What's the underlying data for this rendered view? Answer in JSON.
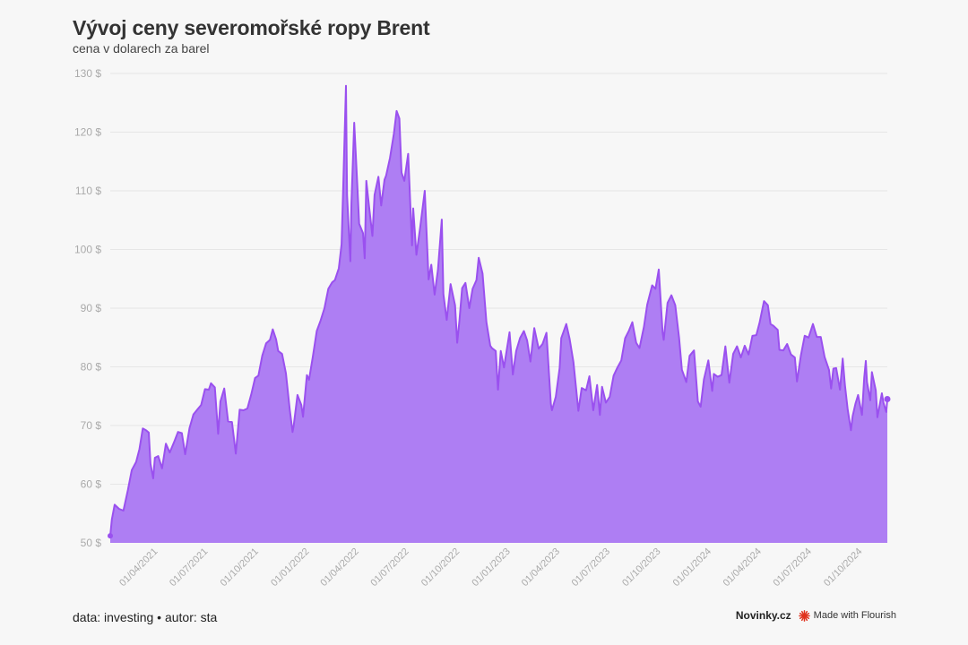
{
  "header": {
    "title": "Vývoj ceny severomořské ropy Brent",
    "subtitle": "cena v dolarech za barel"
  },
  "footer": {
    "source": "data: investing • autor: sta",
    "brand": "Novinky.cz",
    "made_with": "Made with Flourish"
  },
  "colors": {
    "fill": "#ae7ef3",
    "line": "#9a50ef",
    "grid": "#e6e6e6",
    "tick_label": "#aaaaaa",
    "flourish_icon": "#e0321c"
  },
  "chart_data": {
    "type": "area",
    "title": "Vývoj ceny severomořské ropy Brent",
    "subtitle": "cena v dolarech za barel",
    "xlabel": "",
    "ylabel": "",
    "ylim": [
      50,
      130
    ],
    "y_ticks": [
      50,
      60,
      70,
      80,
      90,
      100,
      110,
      120,
      130
    ],
    "y_tick_suffix": " $",
    "x_range": [
      "2021-01-04",
      "2024-11-15"
    ],
    "x_tick_labels": [
      {
        "date": "2021-04-01",
        "label": "01/04/2021"
      },
      {
        "date": "2021-07-01",
        "label": "01/07/2021"
      },
      {
        "date": "2021-10-01",
        "label": "01/10/2021"
      },
      {
        "date": "2022-01-01",
        "label": "01/01/2022"
      },
      {
        "date": "2022-04-01",
        "label": "01/04/2022"
      },
      {
        "date": "2022-07-01",
        "label": "01/07/2022"
      },
      {
        "date": "2022-10-01",
        "label": "01/10/2022"
      },
      {
        "date": "2023-01-01",
        "label": "01/01/2023"
      },
      {
        "date": "2023-04-01",
        "label": "01/04/2023"
      },
      {
        "date": "2023-07-01",
        "label": "01/07/2023"
      },
      {
        "date": "2023-10-01",
        "label": "01/10/2023"
      },
      {
        "date": "2024-01-01",
        "label": "01/01/2024"
      },
      {
        "date": "2024-04-01",
        "label": "01/04/2024"
      },
      {
        "date": "2024-07-01",
        "label": "01/07/2024"
      },
      {
        "date": "2024-10-01",
        "label": "01/10/2024"
      }
    ],
    "grid": true,
    "legend": "none",
    "series": [
      {
        "points": [
          [
            "2021-01-04",
            51.2
          ],
          [
            "2021-01-07",
            54.0
          ],
          [
            "2021-01-12",
            56.5
          ],
          [
            "2021-01-20",
            55.8
          ],
          [
            "2021-01-28",
            55.5
          ],
          [
            "2021-02-05",
            59.0
          ],
          [
            "2021-02-12",
            62.4
          ],
          [
            "2021-02-20",
            63.8
          ],
          [
            "2021-02-26",
            66.0
          ],
          [
            "2021-03-04",
            69.5
          ],
          [
            "2021-03-10",
            69.2
          ],
          [
            "2021-03-15",
            68.8
          ],
          [
            "2021-03-18",
            63.5
          ],
          [
            "2021-03-23",
            61.0
          ],
          [
            "2021-03-26",
            64.5
          ],
          [
            "2021-04-01",
            64.8
          ],
          [
            "2021-04-08",
            62.7
          ],
          [
            "2021-04-15",
            66.9
          ],
          [
            "2021-04-22",
            65.4
          ],
          [
            "2021-04-30",
            67.2
          ],
          [
            "2021-05-07",
            68.9
          ],
          [
            "2021-05-14",
            68.7
          ],
          [
            "2021-05-20",
            65.1
          ],
          [
            "2021-05-28",
            69.6
          ],
          [
            "2021-06-04",
            71.9
          ],
          [
            "2021-06-11",
            72.7
          ],
          [
            "2021-06-18",
            73.5
          ],
          [
            "2021-06-25",
            76.2
          ],
          [
            "2021-07-02",
            76.1
          ],
          [
            "2021-07-06",
            77.2
          ],
          [
            "2021-07-13",
            76.5
          ],
          [
            "2021-07-19",
            68.6
          ],
          [
            "2021-07-23",
            74.1
          ],
          [
            "2021-07-30",
            76.3
          ],
          [
            "2021-08-06",
            70.7
          ],
          [
            "2021-08-13",
            70.6
          ],
          [
            "2021-08-20",
            65.2
          ],
          [
            "2021-08-27",
            72.7
          ],
          [
            "2021-09-03",
            72.6
          ],
          [
            "2021-09-10",
            72.9
          ],
          [
            "2021-09-17",
            75.3
          ],
          [
            "2021-09-24",
            78.1
          ],
          [
            "2021-09-30",
            78.5
          ],
          [
            "2021-10-07",
            81.9
          ],
          [
            "2021-10-14",
            84.0
          ],
          [
            "2021-10-21",
            84.6
          ],
          [
            "2021-10-26",
            86.4
          ],
          [
            "2021-11-01",
            84.7
          ],
          [
            "2021-11-05",
            82.7
          ],
          [
            "2021-11-12",
            82.2
          ],
          [
            "2021-11-19",
            78.9
          ],
          [
            "2021-11-26",
            72.7
          ],
          [
            "2021-12-01",
            68.9
          ],
          [
            "2021-12-03",
            69.9
          ],
          [
            "2021-12-10",
            75.2
          ],
          [
            "2021-12-17",
            73.5
          ],
          [
            "2021-12-20",
            71.5
          ],
          [
            "2021-12-27",
            78.6
          ],
          [
            "2021-12-31",
            77.8
          ],
          [
            "2022-01-07",
            81.8
          ],
          [
            "2022-01-14",
            86.1
          ],
          [
            "2022-01-21",
            87.9
          ],
          [
            "2022-01-28",
            90.0
          ],
          [
            "2022-02-04",
            93.3
          ],
          [
            "2022-02-11",
            94.4
          ],
          [
            "2022-02-16",
            94.8
          ],
          [
            "2022-02-23",
            96.8
          ],
          [
            "2022-02-28",
            100.9
          ],
          [
            "2022-03-03",
            110.5
          ],
          [
            "2022-03-08",
            127.9
          ],
          [
            "2022-03-10",
            109.3
          ],
          [
            "2022-03-16",
            98.0
          ],
          [
            "2022-03-18",
            107.9
          ],
          [
            "2022-03-23",
            121.6
          ],
          [
            "2022-03-29",
            110.2
          ],
          [
            "2022-04-01",
            104.4
          ],
          [
            "2022-04-08",
            102.8
          ],
          [
            "2022-04-11",
            98.5
          ],
          [
            "2022-04-14",
            111.7
          ],
          [
            "2022-04-19",
            107.3
          ],
          [
            "2022-04-25",
            102.3
          ],
          [
            "2022-04-29",
            109.3
          ],
          [
            "2022-05-06",
            112.4
          ],
          [
            "2022-05-11",
            107.5
          ],
          [
            "2022-05-17",
            111.9
          ],
          [
            "2022-05-20",
            112.6
          ],
          [
            "2022-05-27",
            115.6
          ],
          [
            "2022-06-03",
            119.7
          ],
          [
            "2022-06-08",
            123.6
          ],
          [
            "2022-06-13",
            122.3
          ],
          [
            "2022-06-17",
            113.1
          ],
          [
            "2022-06-22",
            111.7
          ],
          [
            "2022-06-29",
            116.3
          ],
          [
            "2022-07-01",
            111.6
          ],
          [
            "2022-07-06",
            100.7
          ],
          [
            "2022-07-08",
            107.0
          ],
          [
            "2022-07-14",
            99.1
          ],
          [
            "2022-07-21",
            103.9
          ],
          [
            "2022-07-29",
            110.0
          ],
          [
            "2022-08-05",
            94.9
          ],
          [
            "2022-08-10",
            97.4
          ],
          [
            "2022-08-16",
            92.3
          ],
          [
            "2022-08-22",
            96.5
          ],
          [
            "2022-08-29",
            105.1
          ],
          [
            "2022-09-01",
            92.4
          ],
          [
            "2022-09-07",
            88.0
          ],
          [
            "2022-09-14",
            94.1
          ],
          [
            "2022-09-22",
            90.5
          ],
          [
            "2022-09-26",
            84.1
          ],
          [
            "2022-09-30",
            87.9
          ],
          [
            "2022-10-05",
            93.4
          ],
          [
            "2022-10-11",
            94.3
          ],
          [
            "2022-10-18",
            90.0
          ],
          [
            "2022-10-24",
            93.3
          ],
          [
            "2022-10-31",
            94.8
          ],
          [
            "2022-11-04",
            98.6
          ],
          [
            "2022-11-11",
            95.9
          ],
          [
            "2022-11-18",
            87.6
          ],
          [
            "2022-11-25",
            83.6
          ],
          [
            "2022-11-28",
            83.2
          ],
          [
            "2022-12-05",
            82.7
          ],
          [
            "2022-12-09",
            76.1
          ],
          [
            "2022-12-14",
            82.7
          ],
          [
            "2022-12-20",
            79.9
          ],
          [
            "2022-12-30",
            85.9
          ],
          [
            "2023-01-05",
            78.7
          ],
          [
            "2023-01-11",
            82.7
          ],
          [
            "2023-01-18",
            84.9
          ],
          [
            "2023-01-25",
            86.1
          ],
          [
            "2023-01-31",
            84.5
          ],
          [
            "2023-02-06",
            80.9
          ],
          [
            "2023-02-13",
            86.6
          ],
          [
            "2023-02-21",
            83.1
          ],
          [
            "2023-02-28",
            83.9
          ],
          [
            "2023-03-07",
            85.8
          ],
          [
            "2023-03-15",
            73.7
          ],
          [
            "2023-03-17",
            72.6
          ],
          [
            "2023-03-24",
            74.9
          ],
          [
            "2023-03-31",
            79.8
          ],
          [
            "2023-04-03",
            84.9
          ],
          [
            "2023-04-12",
            87.3
          ],
          [
            "2023-04-18",
            84.8
          ],
          [
            "2023-04-25",
            80.8
          ],
          [
            "2023-05-04",
            72.5
          ],
          [
            "2023-05-10",
            76.4
          ],
          [
            "2023-05-18",
            76.0
          ],
          [
            "2023-05-24",
            78.4
          ],
          [
            "2023-05-31",
            72.6
          ],
          [
            "2023-06-07",
            76.9
          ],
          [
            "2023-06-12",
            71.8
          ],
          [
            "2023-06-16",
            76.6
          ],
          [
            "2023-06-23",
            73.9
          ],
          [
            "2023-06-30",
            74.9
          ],
          [
            "2023-07-07",
            78.5
          ],
          [
            "2023-07-14",
            79.9
          ],
          [
            "2023-07-21",
            81.1
          ],
          [
            "2023-07-28",
            84.9
          ],
          [
            "2023-08-04",
            86.2
          ],
          [
            "2023-08-10",
            87.6
          ],
          [
            "2023-08-17",
            84.1
          ],
          [
            "2023-08-23",
            83.2
          ],
          [
            "2023-08-31",
            86.8
          ],
          [
            "2023-09-06",
            90.6
          ],
          [
            "2023-09-15",
            93.9
          ],
          [
            "2023-09-21",
            93.3
          ],
          [
            "2023-09-27",
            96.6
          ],
          [
            "2023-10-04",
            85.8
          ],
          [
            "2023-10-06",
            84.6
          ],
          [
            "2023-10-13",
            90.9
          ],
          [
            "2023-10-20",
            92.2
          ],
          [
            "2023-10-27",
            90.5
          ],
          [
            "2023-11-03",
            84.9
          ],
          [
            "2023-11-08",
            79.5
          ],
          [
            "2023-11-16",
            77.4
          ],
          [
            "2023-11-22",
            81.9
          ],
          [
            "2023-11-30",
            82.8
          ],
          [
            "2023-12-07",
            74.1
          ],
          [
            "2023-12-12",
            73.2
          ],
          [
            "2023-12-18",
            77.9
          ],
          [
            "2023-12-26",
            81.1
          ],
          [
            "2024-01-02",
            75.9
          ],
          [
            "2024-01-05",
            78.8
          ],
          [
            "2024-01-12",
            78.3
          ],
          [
            "2024-01-19",
            78.6
          ],
          [
            "2024-01-26",
            83.5
          ],
          [
            "2024-02-02",
            77.3
          ],
          [
            "2024-02-09",
            82.2
          ],
          [
            "2024-02-16",
            83.5
          ],
          [
            "2024-02-23",
            81.6
          ],
          [
            "2024-03-01",
            83.6
          ],
          [
            "2024-03-08",
            82.1
          ],
          [
            "2024-03-15",
            85.3
          ],
          [
            "2024-03-22",
            85.4
          ],
          [
            "2024-03-28",
            87.5
          ],
          [
            "2024-04-05",
            91.2
          ],
          [
            "2024-04-12",
            90.5
          ],
          [
            "2024-04-17",
            87.3
          ],
          [
            "2024-04-22",
            87.0
          ],
          [
            "2024-04-30",
            86.3
          ],
          [
            "2024-05-03",
            82.9
          ],
          [
            "2024-05-10",
            82.8
          ],
          [
            "2024-05-17",
            83.9
          ],
          [
            "2024-05-24",
            82.1
          ],
          [
            "2024-05-31",
            81.6
          ],
          [
            "2024-06-04",
            77.5
          ],
          [
            "2024-06-11",
            81.9
          ],
          [
            "2024-06-18",
            85.3
          ],
          [
            "2024-06-25",
            85.0
          ],
          [
            "2024-07-03",
            87.3
          ],
          [
            "2024-07-10",
            85.1
          ],
          [
            "2024-07-17",
            85.1
          ],
          [
            "2024-07-24",
            81.7
          ],
          [
            "2024-08-01",
            79.5
          ],
          [
            "2024-08-05",
            76.3
          ],
          [
            "2024-08-09",
            79.7
          ],
          [
            "2024-08-14",
            79.8
          ],
          [
            "2024-08-21",
            76.1
          ],
          [
            "2024-08-26",
            81.4
          ],
          [
            "2024-08-30",
            76.9
          ],
          [
            "2024-09-04",
            72.7
          ],
          [
            "2024-09-10",
            69.2
          ],
          [
            "2024-09-13",
            71.6
          ],
          [
            "2024-09-18",
            73.7
          ],
          [
            "2024-09-23",
            75.2
          ],
          [
            "2024-09-30",
            71.8
          ],
          [
            "2024-10-04",
            78.1
          ],
          [
            "2024-10-07",
            81.0
          ],
          [
            "2024-10-09",
            77.4
          ],
          [
            "2024-10-15",
            74.3
          ],
          [
            "2024-10-18",
            79.1
          ],
          [
            "2024-10-25",
            76.0
          ],
          [
            "2024-10-28",
            71.4
          ],
          [
            "2024-11-05",
            75.5
          ],
          [
            "2024-11-08",
            73.9
          ],
          [
            "2024-11-13",
            72.3
          ],
          [
            "2024-11-15",
            74.5
          ]
        ]
      }
    ]
  }
}
